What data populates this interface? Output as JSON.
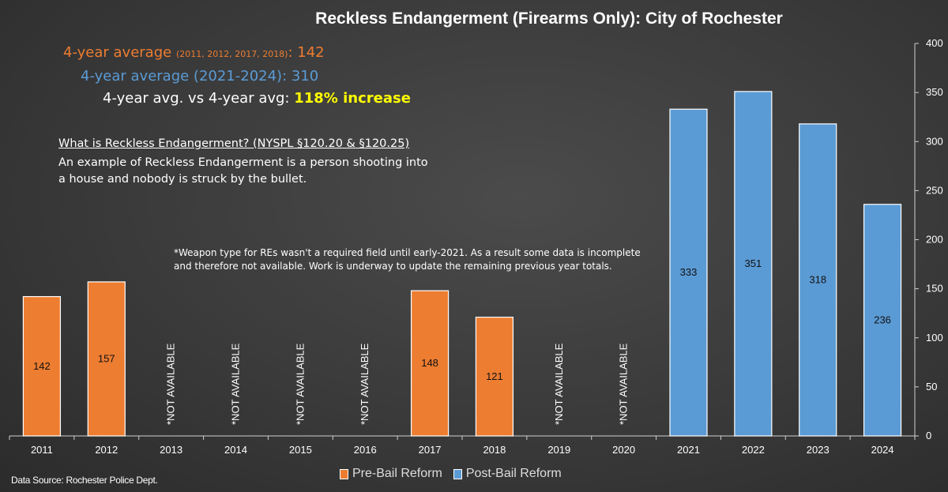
{
  "chart_data": {
    "type": "bar",
    "title": "Reckless Endangerment (Firearms Only): City of Rochester",
    "categories": [
      "2011",
      "2012",
      "2013",
      "2014",
      "2015",
      "2016",
      "2017",
      "2018",
      "2019",
      "2020",
      "2021",
      "2022",
      "2023",
      "2024"
    ],
    "values": [
      142,
      157,
      null,
      null,
      null,
      null,
      148,
      121,
      null,
      null,
      333,
      351,
      318,
      236
    ],
    "group": [
      "pre",
      "pre",
      "pre",
      "pre",
      "pre",
      "pre",
      "pre",
      "pre",
      "pre",
      "pre",
      "post",
      "post",
      "post",
      "post"
    ],
    "missing_label": "*NOT AVAILABLE",
    "yticks": [
      "0",
      "50",
      "100",
      "150",
      "200",
      "250",
      "300",
      "350",
      "400"
    ],
    "ylim": [
      0,
      400
    ],
    "y_axis_side": "right",
    "grid": false,
    "legend_position": "bottom",
    "series": [
      {
        "name": "Pre-Bail Reform",
        "color": "#ed7d31"
      },
      {
        "name": "Post-Bail Reform",
        "color": "#5b9bd5"
      }
    ]
  },
  "annotations": {
    "avg1_label": "4-year average",
    "avg1_years": "(2011, 2012, 2017, 2018)",
    "avg1_value": "142",
    "avg2_text": "4-year average (2021-2024):",
    "avg2_value": "310",
    "avg3_text": "4-year avg. vs 4-year avg:",
    "avg3_increase": "118% increase",
    "re_heading": "What is Reckless Endangerment? (NYSPL §120.20 & §120.25)",
    "re_body": "An example of Reckless Endangerment is a person shooting into a house and nobody is struck by the bullet.",
    "weapon_note": "*Weapon type for REs wasn't a required field until early-2021. As a result some data is incomplete and therefore not available. Work is underway to update the remaining previous year totals.",
    "source": "Data Source: Rochester Police Dept."
  },
  "colors": {
    "pre": "#ed7d31",
    "post": "#5b9bd5",
    "highlight": "#ffff00"
  }
}
